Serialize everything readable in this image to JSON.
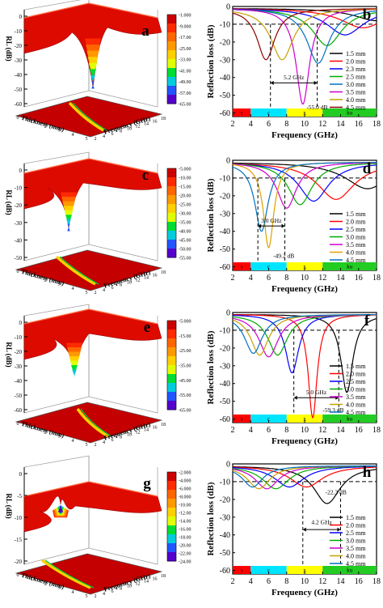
{
  "panels": [
    {
      "letter": "a"
    },
    {
      "letter": "b"
    },
    {
      "letter": "c"
    },
    {
      "letter": "d"
    },
    {
      "letter": "e"
    },
    {
      "letter": "f"
    },
    {
      "letter": "g"
    },
    {
      "letter": "h"
    }
  ],
  "band_colors": {
    "s": "#ff0000",
    "c": "#00e5ff",
    "x": "#ffff00",
    "ku": "#22cc22"
  },
  "surface_colors": [
    "#cc0000",
    "#ff2a00",
    "#ff6600",
    "#ff9900",
    "#ffd000",
    "#e0ff00",
    "#00dd33",
    "#00ccdd",
    "#2255ff",
    "#5500cc"
  ],
  "chart_data": [
    {
      "panel": "a",
      "type": "surface3d",
      "zlabel": "RL (dB)",
      "xlabel": "Thickness (mm)",
      "ylabel": "Frequency (GHz)",
      "colorbar": [
        "-1.000",
        "-9.000",
        "-17.00",
        "-25.00",
        "-33.00",
        "-41.00",
        "-49.00",
        "-57.00",
        "-65.00"
      ],
      "z_ticks": [
        "0",
        "-10",
        "-20",
        "-30",
        "-40",
        "-50",
        "-60"
      ],
      "thickness_ticks": [
        "0",
        "1",
        "2",
        "3",
        "4",
        "5"
      ],
      "freq_ticks": [
        "2",
        "4",
        "6",
        "8",
        "10",
        "12",
        "14",
        "16",
        "18"
      ]
    },
    {
      "panel": "b",
      "type": "line",
      "xlabel": "Frequency (GHz)",
      "ylabel": "Reflection loss (dB)",
      "xlim": [
        2,
        18
      ],
      "ylim": [
        -62,
        0
      ],
      "x_ticks": [
        2,
        4,
        6,
        8,
        10,
        12,
        14,
        16,
        18
      ],
      "y_ticks": [
        0,
        -10,
        -20,
        -30,
        -40,
        -50,
        -60
      ],
      "ref_line": -10,
      "bands": [
        {
          "name": "s",
          "from": 2,
          "to": 4
        },
        {
          "name": "c",
          "from": 4,
          "to": 8
        },
        {
          "name": "x",
          "from": 8,
          "to": 12
        },
        {
          "name": "ku",
          "from": 12,
          "to": 18
        }
      ],
      "series": [
        {
          "name": "1.5 mm",
          "color": "#000000",
          "fmin": 18,
          "rlmin": -8,
          "width": 3
        },
        {
          "name": "2.0 mm",
          "color": "#ff0000",
          "fmin": 16.5,
          "rlmin": -12,
          "width": 3
        },
        {
          "name": "2.3 mm",
          "color": "#0000ff",
          "fmin": 14.5,
          "rlmin": -16,
          "width": 2.5
        },
        {
          "name": "2.5 mm",
          "color": "#00aa00",
          "fmin": 12.5,
          "rlmin": -22,
          "width": 2
        },
        {
          "name": "3.0 mm",
          "color": "#0070c0",
          "fmin": 11.5,
          "rlmin": -32,
          "width": 1.5
        },
        {
          "name": "3.5 mm",
          "color": "#cc00cc",
          "fmin": 9.8,
          "rlmin": -55,
          "width": 0.9
        },
        {
          "name": "4.0 mm",
          "color": "#c8a000",
          "fmin": 7.5,
          "rlmin": -30,
          "width": 1.5
        },
        {
          "name": "4.5 mm",
          "color": "#8b0000",
          "fmin": 5.7,
          "rlmin": -30,
          "width": 1.2
        }
      ],
      "vlines": [
        6.2,
        11.4
      ],
      "annotations": [
        {
          "text": "5.2 GHz",
          "type": "arrow",
          "x1": 6.2,
          "x2": 11.4,
          "y": -43,
          "label_x": 8.8,
          "label_y": -41
        },
        {
          "text": "-55.0 dB",
          "type": "label",
          "x": 10.2,
          "y": -58
        }
      ]
    },
    {
      "panel": "c",
      "type": "surface3d",
      "zlabel": "RL (dB)",
      "xlabel": "Thickness (mm)",
      "ylabel": "Frequency (GHz)",
      "colorbar": [
        "-5.000",
        "-10.00",
        "-15.00",
        "-20.00",
        "-25.00",
        "-30.00",
        "-35.00",
        "-40.00",
        "-45.00",
        "-50.00",
        "-55.00"
      ],
      "z_ticks": [
        "0",
        "-10",
        "-20",
        "-30",
        "-40",
        "-50"
      ],
      "thickness_ticks": [
        "0",
        "1",
        "2",
        "3",
        "4",
        "5"
      ],
      "freq_ticks": [
        "2",
        "4",
        "6",
        "8",
        "10",
        "12",
        "14",
        "16",
        "18"
      ]
    },
    {
      "panel": "d",
      "type": "line",
      "xlabel": "Frequency (GHz)",
      "ylabel": "Reflection loss (dB)",
      "xlim": [
        2,
        18
      ],
      "ylim": [
        -62,
        0
      ],
      "x_ticks": [
        2,
        4,
        6,
        8,
        10,
        12,
        14,
        16,
        18
      ],
      "y_ticks": [
        0,
        -10,
        -20,
        -30,
        -40,
        -50,
        -60
      ],
      "ref_line": -10,
      "bands": [
        {
          "name": "s",
          "from": 2,
          "to": 4
        },
        {
          "name": "c",
          "from": 4,
          "to": 8
        },
        {
          "name": "x",
          "from": 8,
          "to": 12
        },
        {
          "name": "ku",
          "from": 12,
          "to": 18
        }
      ],
      "series": [
        {
          "name": "1.5 mm",
          "color": "#000000",
          "fmin": 17,
          "rlmin": -16,
          "width": 3
        },
        {
          "name": "2.0 mm",
          "color": "#ff0000",
          "fmin": 13.5,
          "rlmin": -22,
          "width": 2.5
        },
        {
          "name": "2.5 mm",
          "color": "#0000ff",
          "fmin": 11.0,
          "rlmin": -23,
          "width": 2
        },
        {
          "name": "3.0 mm",
          "color": "#00aa00",
          "fmin": 9.5,
          "rlmin": -25,
          "width": 1.6
        },
        {
          "name": "3.5 mm",
          "color": "#cc00cc",
          "fmin": 8.0,
          "rlmin": -27,
          "width": 1.3
        },
        {
          "name": "4.0 mm",
          "color": "#e0a000",
          "fmin": 6.0,
          "rlmin": -49.2,
          "width": 0.7
        },
        {
          "name": "4.5 mm",
          "color": "#0070c0",
          "fmin": 5.2,
          "rlmin": -40,
          "width": 0.9
        }
      ],
      "vlines": [
        4.8,
        7.8
      ],
      "annotations": [
        {
          "text": "3.0 GHz",
          "type": "arrow",
          "x1": 4.8,
          "x2": 7.8,
          "y": -37,
          "label_x": 6.3,
          "label_y": -35
        },
        {
          "text": "-49.2 dB",
          "type": "label",
          "x": 6.5,
          "y": -55
        }
      ]
    },
    {
      "panel": "e",
      "type": "surface3d",
      "zlabel": "RL (dB)",
      "xlabel": "Thickness (mm)",
      "ylabel": "Frequency (GHz)",
      "colorbar": [
        "-5.000",
        "-15.00",
        "-25.00",
        "-35.00",
        "-45.00",
        "-55.00",
        "-65.00"
      ],
      "z_ticks": [
        "0",
        "-10",
        "-20",
        "-30",
        "-40",
        "-50",
        "-60"
      ],
      "thickness_ticks": [
        "0",
        "1",
        "2",
        "3",
        "4",
        "5"
      ],
      "freq_ticks": [
        "2",
        "4",
        "6",
        "8",
        "10",
        "12",
        "14",
        "16",
        "18"
      ]
    },
    {
      "panel": "f",
      "type": "line",
      "xlabel": "Frequency (GHz)",
      "ylabel": "Reflection loss (dB)",
      "xlim": [
        2,
        18
      ],
      "ylim": [
        -62,
        0
      ],
      "x_ticks": [
        2,
        4,
        6,
        8,
        10,
        12,
        14,
        16,
        18
      ],
      "y_ticks": [
        0,
        -10,
        -20,
        -30,
        -40,
        -50,
        -60
      ],
      "ref_line": -10,
      "bands": [
        {
          "name": "s",
          "from": 2,
          "to": 4
        },
        {
          "name": "c",
          "from": 4,
          "to": 8
        },
        {
          "name": "x",
          "from": 8,
          "to": 12
        },
        {
          "name": "ku",
          "from": 12,
          "to": 18
        }
      ],
      "series": [
        {
          "name": "1.5 mm",
          "color": "#000000",
          "fmin": 14.7,
          "rlmin": -45,
          "width": 0.8
        },
        {
          "name": "2.0 mm",
          "color": "#ff0000",
          "fmin": 10.9,
          "rlmin": -59.3,
          "width": 0.6
        },
        {
          "name": "2.5 mm",
          "color": "#0000ff",
          "fmin": 8.6,
          "rlmin": -34,
          "width": 0.9
        },
        {
          "name": "3.0 mm",
          "color": "#00aa00",
          "fmin": 7.0,
          "rlmin": -24,
          "width": 1.3
        },
        {
          "name": "3.5 mm",
          "color": "#cc00cc",
          "fmin": 6.0,
          "rlmin": -25,
          "width": 1.3
        },
        {
          "name": "4.0 mm",
          "color": "#c8a000",
          "fmin": 5.0,
          "rlmin": -24,
          "width": 1.2
        },
        {
          "name": "4.5 mm",
          "color": "#0070c0",
          "fmin": 4.3,
          "rlmin": -23,
          "width": 1.2
        }
      ],
      "vlines": [
        8.8,
        13.8
      ],
      "annotations": [
        {
          "text": "5.0 GHz",
          "type": "arrow",
          "x1": 8.8,
          "x2": 13.8,
          "y": -48,
          "label_x": 11.3,
          "label_y": -46
        },
        {
          "text": "-59.3 dB",
          "type": "label",
          "x": 12.0,
          "y": -56
        }
      ]
    },
    {
      "panel": "g",
      "type": "surface3d",
      "zlabel": "RL (dB)",
      "xlabel": "Thickness (mm)",
      "ylabel": "Frequency (GHz)",
      "colorbar": [
        "-2.000",
        "-4.000",
        "-6.000",
        "-8.000",
        "-10.00",
        "-12.00",
        "-14.00",
        "-16.00",
        "-18.00",
        "-20.00",
        "-22.00",
        "-24.00"
      ],
      "z_ticks": [
        "0",
        "-5",
        "-10",
        "-15",
        "-20"
      ],
      "thickness_ticks": [
        "0",
        "1",
        "2",
        "3",
        "4",
        "5"
      ],
      "freq_ticks": [
        "2",
        "4",
        "6",
        "8",
        "10",
        "12",
        "14",
        "16",
        "18"
      ]
    },
    {
      "panel": "h",
      "type": "line",
      "xlabel": "Frequency (GHz)",
      "ylabel": "Reflection loss (dB)",
      "xlim": [
        2,
        18
      ],
      "ylim": [
        -62,
        0
      ],
      "x_ticks": [
        2,
        4,
        6,
        8,
        10,
        12,
        14,
        16,
        18
      ],
      "y_ticks": [
        0,
        -10,
        -20,
        -30,
        -40,
        -50,
        -60
      ],
      "ref_line": -10,
      "bands": [
        {
          "name": "s",
          "from": 2,
          "to": 4
        },
        {
          "name": "c",
          "from": 4,
          "to": 8
        },
        {
          "name": "x",
          "from": 8,
          "to": 12
        },
        {
          "name": "ku",
          "from": 12,
          "to": 18
        }
      ],
      "series": [
        {
          "name": "1.5 mm",
          "color": "#000000",
          "fmin": 12.5,
          "rlmin": -22.3,
          "width": 1.8
        },
        {
          "name": "2.0 mm",
          "color": "#ff0000",
          "fmin": 10.2,
          "rlmin": -13,
          "width": 2.2
        },
        {
          "name": "2.5 mm",
          "color": "#0000ff",
          "fmin": 8.3,
          "rlmin": -13,
          "width": 2
        },
        {
          "name": "3.0 mm",
          "color": "#00aa00",
          "fmin": 6.8,
          "rlmin": -14,
          "width": 1.8
        },
        {
          "name": "3.5 mm",
          "color": "#cc00cc",
          "fmin": 5.8,
          "rlmin": -14,
          "width": 1.6
        },
        {
          "name": "4.0 mm",
          "color": "#c8a000",
          "fmin": 4.9,
          "rlmin": -14,
          "width": 1.5
        },
        {
          "name": "4.5 mm",
          "color": "#0070c0",
          "fmin": 4.2,
          "rlmin": -13,
          "width": 1.4
        }
      ],
      "vlines": [
        9.8,
        14.0
      ],
      "annotations": [
        {
          "text": "4.2 GHz",
          "type": "arrow",
          "x1": 9.8,
          "x2": 14.0,
          "y": -37,
          "label_x": 11.9,
          "label_y": -34
        },
        {
          "text": "-22.3 dB",
          "type": "label",
          "x": 12.3,
          "y": -17
        }
      ]
    }
  ]
}
